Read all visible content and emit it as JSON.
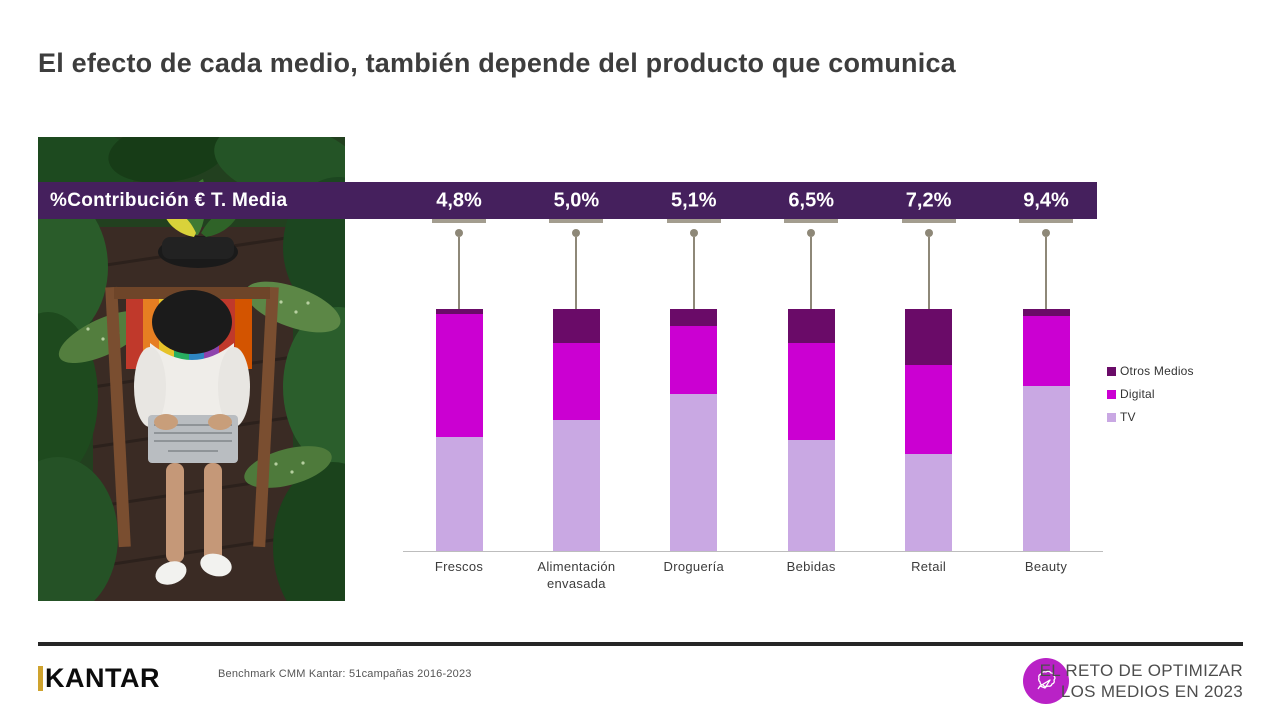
{
  "slide_title": "El efecto de cada medio, también depende del producto que comunica",
  "banner": {
    "label": "%Contribución € T. Media",
    "values": [
      "4,8%",
      "5,0%",
      "5,1%",
      "6,5%",
      "7,2%",
      "9,4%"
    ]
  },
  "chart_data": {
    "type": "bar",
    "stacked": true,
    "title": "%Contribución € T. Media",
    "categories": [
      "Frescos",
      "Alimentación envasada",
      "Droguería",
      "Bebidas",
      "Retail",
      "Beauty"
    ],
    "callouts": [
      "4,8%",
      "5,0%",
      "5,1%",
      "6,5%",
      "7,2%",
      "9,4%"
    ],
    "series": [
      {
        "name": "TV",
        "color": "#c9a8e3",
        "values": [
          47,
          54,
          65,
          46,
          40,
          68
        ]
      },
      {
        "name": "Digital",
        "color": "#cb00d2",
        "values": [
          51,
          32,
          28,
          40,
          37,
          29
        ]
      },
      {
        "name": "Otros Medios",
        "color": "#6a0b68",
        "values": [
          2,
          14,
          7,
          14,
          23,
          3
        ]
      }
    ],
    "legend": [
      "Otros Medios",
      "Digital",
      "TV"
    ],
    "legend_position": "right",
    "ylim": [
      0,
      100
    ],
    "grid": false
  },
  "legend": {
    "items": [
      {
        "label": "Otros Medios",
        "color": "#6a0b68"
      },
      {
        "label": "Digital",
        "color": "#cb00d2"
      },
      {
        "label": "TV",
        "color": "#c9a8e3"
      }
    ]
  },
  "footer": {
    "brand": "KANTAR",
    "source": "Benchmark CMM Kantar: 51campañas 2016-2023",
    "campaign": [
      "EL RETO DE OPTIMIZAR",
      "LOS MEDIOS EN 2023"
    ]
  },
  "colors": {
    "banner_bg": "#45205d",
    "accent_light_purple": "#c9a8e3",
    "accent_magenta": "#cb00d2",
    "accent_dark_purple": "#6a0b68",
    "leader_grey": "#8e8878",
    "badge": "#b922c6"
  }
}
